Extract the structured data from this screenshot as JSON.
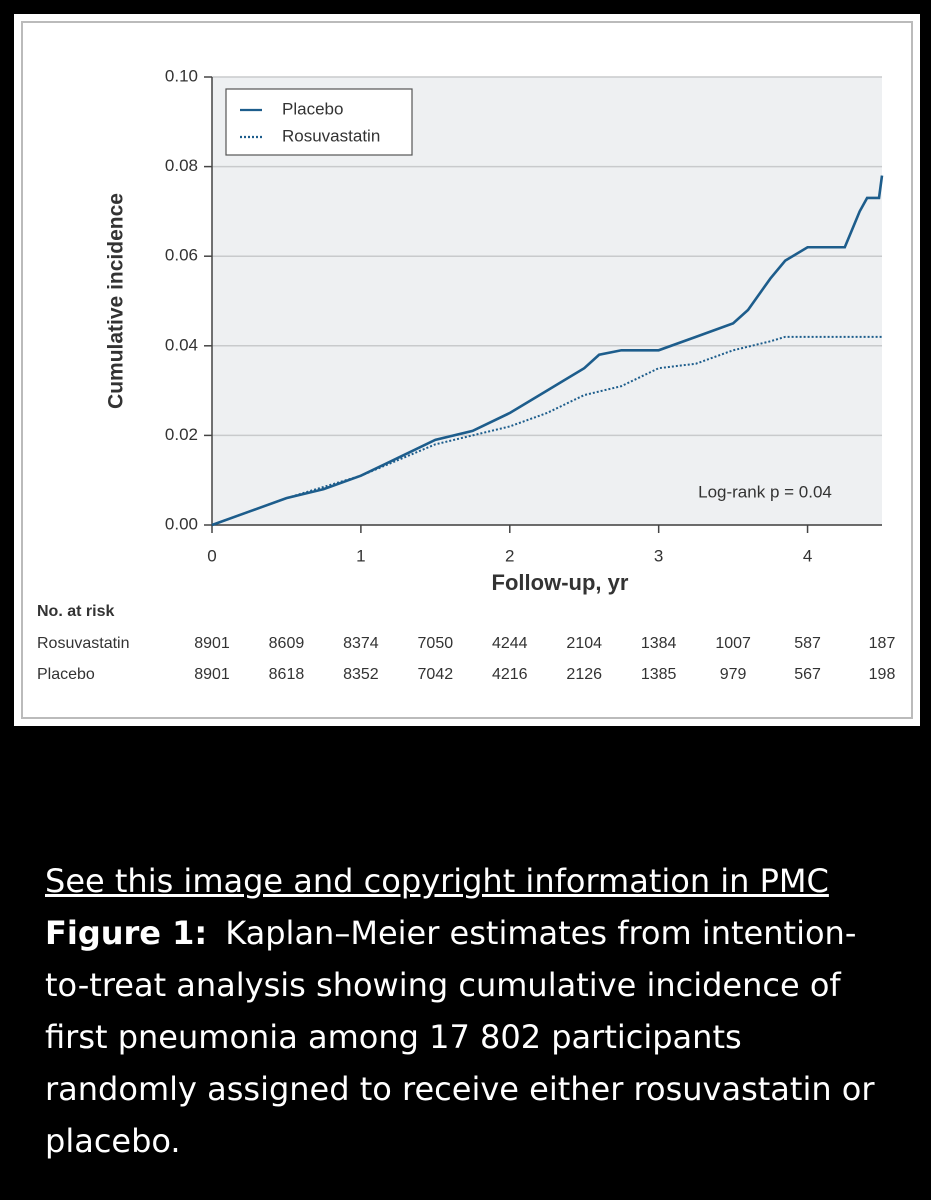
{
  "chart_data": {
    "type": "line",
    "step": true,
    "x_label": "Follow-up, yr",
    "y_label": "Cumulative incidence",
    "xlim": [
      0,
      4.5
    ],
    "xticks": [
      0,
      1,
      2,
      3,
      4
    ],
    "ylim": [
      0,
      0.1
    ],
    "yticks": [
      {
        "value": 0,
        "label": "0.00"
      },
      {
        "value": 0.02,
        "label": "0.02"
      },
      {
        "value": 0.04,
        "label": "0.04"
      },
      {
        "value": 0.06,
        "label": "0.06"
      },
      {
        "value": 0.08,
        "label": "0.08"
      },
      {
        "value": 0.1,
        "label": "0.10"
      }
    ],
    "grid": true,
    "legend": "upper left",
    "annotation": "Log-rank p = 0.04",
    "series": [
      {
        "name": "Placebo",
        "color": "#1d5d8c",
        "dash": false,
        "x": [
          0,
          0.25,
          0.5,
          0.75,
          1,
          1.25,
          1.5,
          1.75,
          2,
          2.25,
          2.5,
          2.6,
          2.75,
          3,
          3.25,
          3.5,
          3.6,
          3.75,
          3.85,
          4,
          4.25,
          4.3,
          4.35,
          4.4,
          4.48,
          4.5
        ],
        "values": [
          0,
          0.003,
          0.006,
          0.008,
          0.011,
          0.015,
          0.019,
          0.021,
          0.025,
          0.03,
          0.035,
          0.038,
          0.039,
          0.039,
          0.042,
          0.045,
          0.048,
          0.055,
          0.059,
          0.062,
          0.062,
          0.066,
          0.07,
          0.073,
          0.073,
          0.078
        ]
      },
      {
        "name": "Rosuvastatin",
        "color": "#1d5d8c",
        "dash": true,
        "x": [
          0,
          0.5,
          1,
          1.5,
          2,
          2.25,
          2.5,
          2.75,
          3,
          3.25,
          3.5,
          3.75,
          3.85,
          4.5
        ],
        "values": [
          0,
          0.006,
          0.011,
          0.018,
          0.022,
          0.025,
          0.029,
          0.031,
          0.035,
          0.036,
          0.039,
          0.041,
          0.042,
          0.042
        ]
      }
    ],
    "at_risk": {
      "title": "No. at risk",
      "interval": 0.5,
      "rows": [
        {
          "name": "Rosuvastatin",
          "values": [
            8901,
            8609,
            8374,
            7050,
            4244,
            2104,
            1384,
            1007,
            587,
            187
          ]
        },
        {
          "name": "Placebo",
          "values": [
            8901,
            8618,
            8352,
            7042,
            4216,
            2126,
            1385,
            979,
            567,
            198
          ]
        }
      ]
    }
  },
  "caption": {
    "link": "See this image and copyright information in PMC",
    "label": "Figure 1:",
    "text": "Kaplan–Meier estimates from intention-to-treat analysis showing cumulative incidence of first pneumonia among 17 802 participants randomly assigned to receive either rosuvastatin or placebo."
  }
}
